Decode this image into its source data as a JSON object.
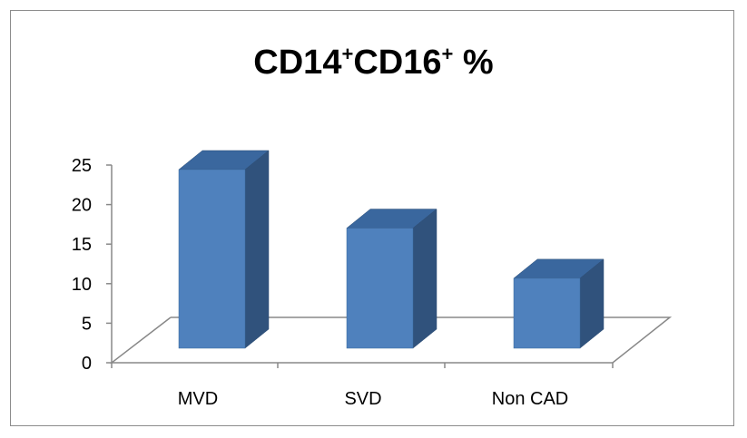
{
  "chart_data": {
    "type": "bar",
    "title_parts": [
      "CD14",
      "+",
      "CD16",
      "+",
      " %"
    ],
    "categories": [
      "MVD",
      "SVD",
      "Non CAD"
    ],
    "values": [
      23.5,
      15.8,
      9.2
    ],
    "y_ticks": [
      "0",
      "5",
      "10",
      "15",
      "20",
      "25"
    ],
    "ylim": [
      0,
      25
    ],
    "grid": false,
    "legend": "none",
    "three_d": true
  },
  "colors": {
    "bar_front": "#4f81bd",
    "bar_side": "#30527c",
    "bar_top": "#3a679e",
    "axis": "#888888",
    "frame": "#8c8c8c"
  }
}
